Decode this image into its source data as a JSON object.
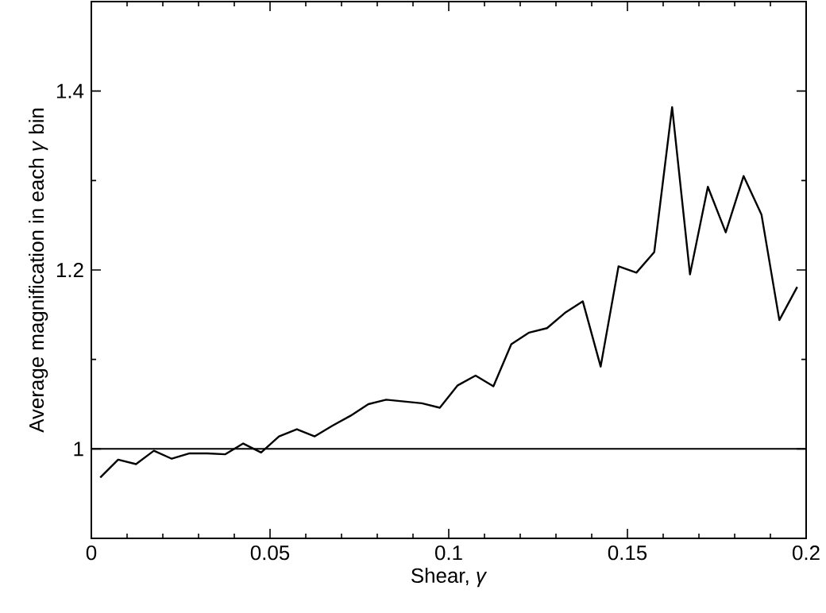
{
  "chart_data": {
    "type": "line",
    "xlabel": "Shear, *γ*",
    "ylabel": "Average magnification in each *γ* bin",
    "x": [
      0.0025,
      0.0075,
      0.0125,
      0.0175,
      0.0225,
      0.0275,
      0.0325,
      0.0375,
      0.0425,
      0.0475,
      0.0525,
      0.0575,
      0.0625,
      0.0675,
      0.0725,
      0.0775,
      0.0825,
      0.0875,
      0.0925,
      0.0975,
      0.1025,
      0.1075,
      0.1125,
      0.1175,
      0.1225,
      0.1275,
      0.1325,
      0.1375,
      0.1425,
      0.1475,
      0.1525,
      0.1575,
      0.1625,
      0.1675,
      0.1725,
      0.1775,
      0.1825,
      0.1875,
      0.1925,
      0.1975
    ],
    "series": [
      {
        "color": "#000000",
        "values": [
          0.968,
          0.988,
          0.983,
          0.998,
          0.989,
          0.995,
          0.995,
          0.994,
          1.006,
          0.996,
          1.014,
          1.022,
          1.014,
          1.026,
          1.037,
          1.05,
          1.055,
          1.053,
          1.051,
          1.046,
          1.071,
          1.082,
          1.07,
          1.117,
          1.13,
          1.135,
          1.152,
          1.165,
          1.092,
          1.204,
          1.197,
          1.22,
          1.382,
          1.195,
          1.293,
          1.242,
          1.305,
          1.262,
          1.144,
          1.181
        ]
      }
    ],
    "xlim": [
      0,
      0.2
    ],
    "ylim": [
      0.9,
      1.5
    ],
    "xticks": [
      0,
      0.05,
      0.1,
      0.15,
      0.2
    ],
    "yticks": [
      1,
      1.2,
      1.4
    ],
    "ref_lines": [
      {
        "axis": "y",
        "value": 1,
        "color": "#000000"
      }
    ],
    "grid": false,
    "marker": "none",
    "line_style": "solid"
  }
}
